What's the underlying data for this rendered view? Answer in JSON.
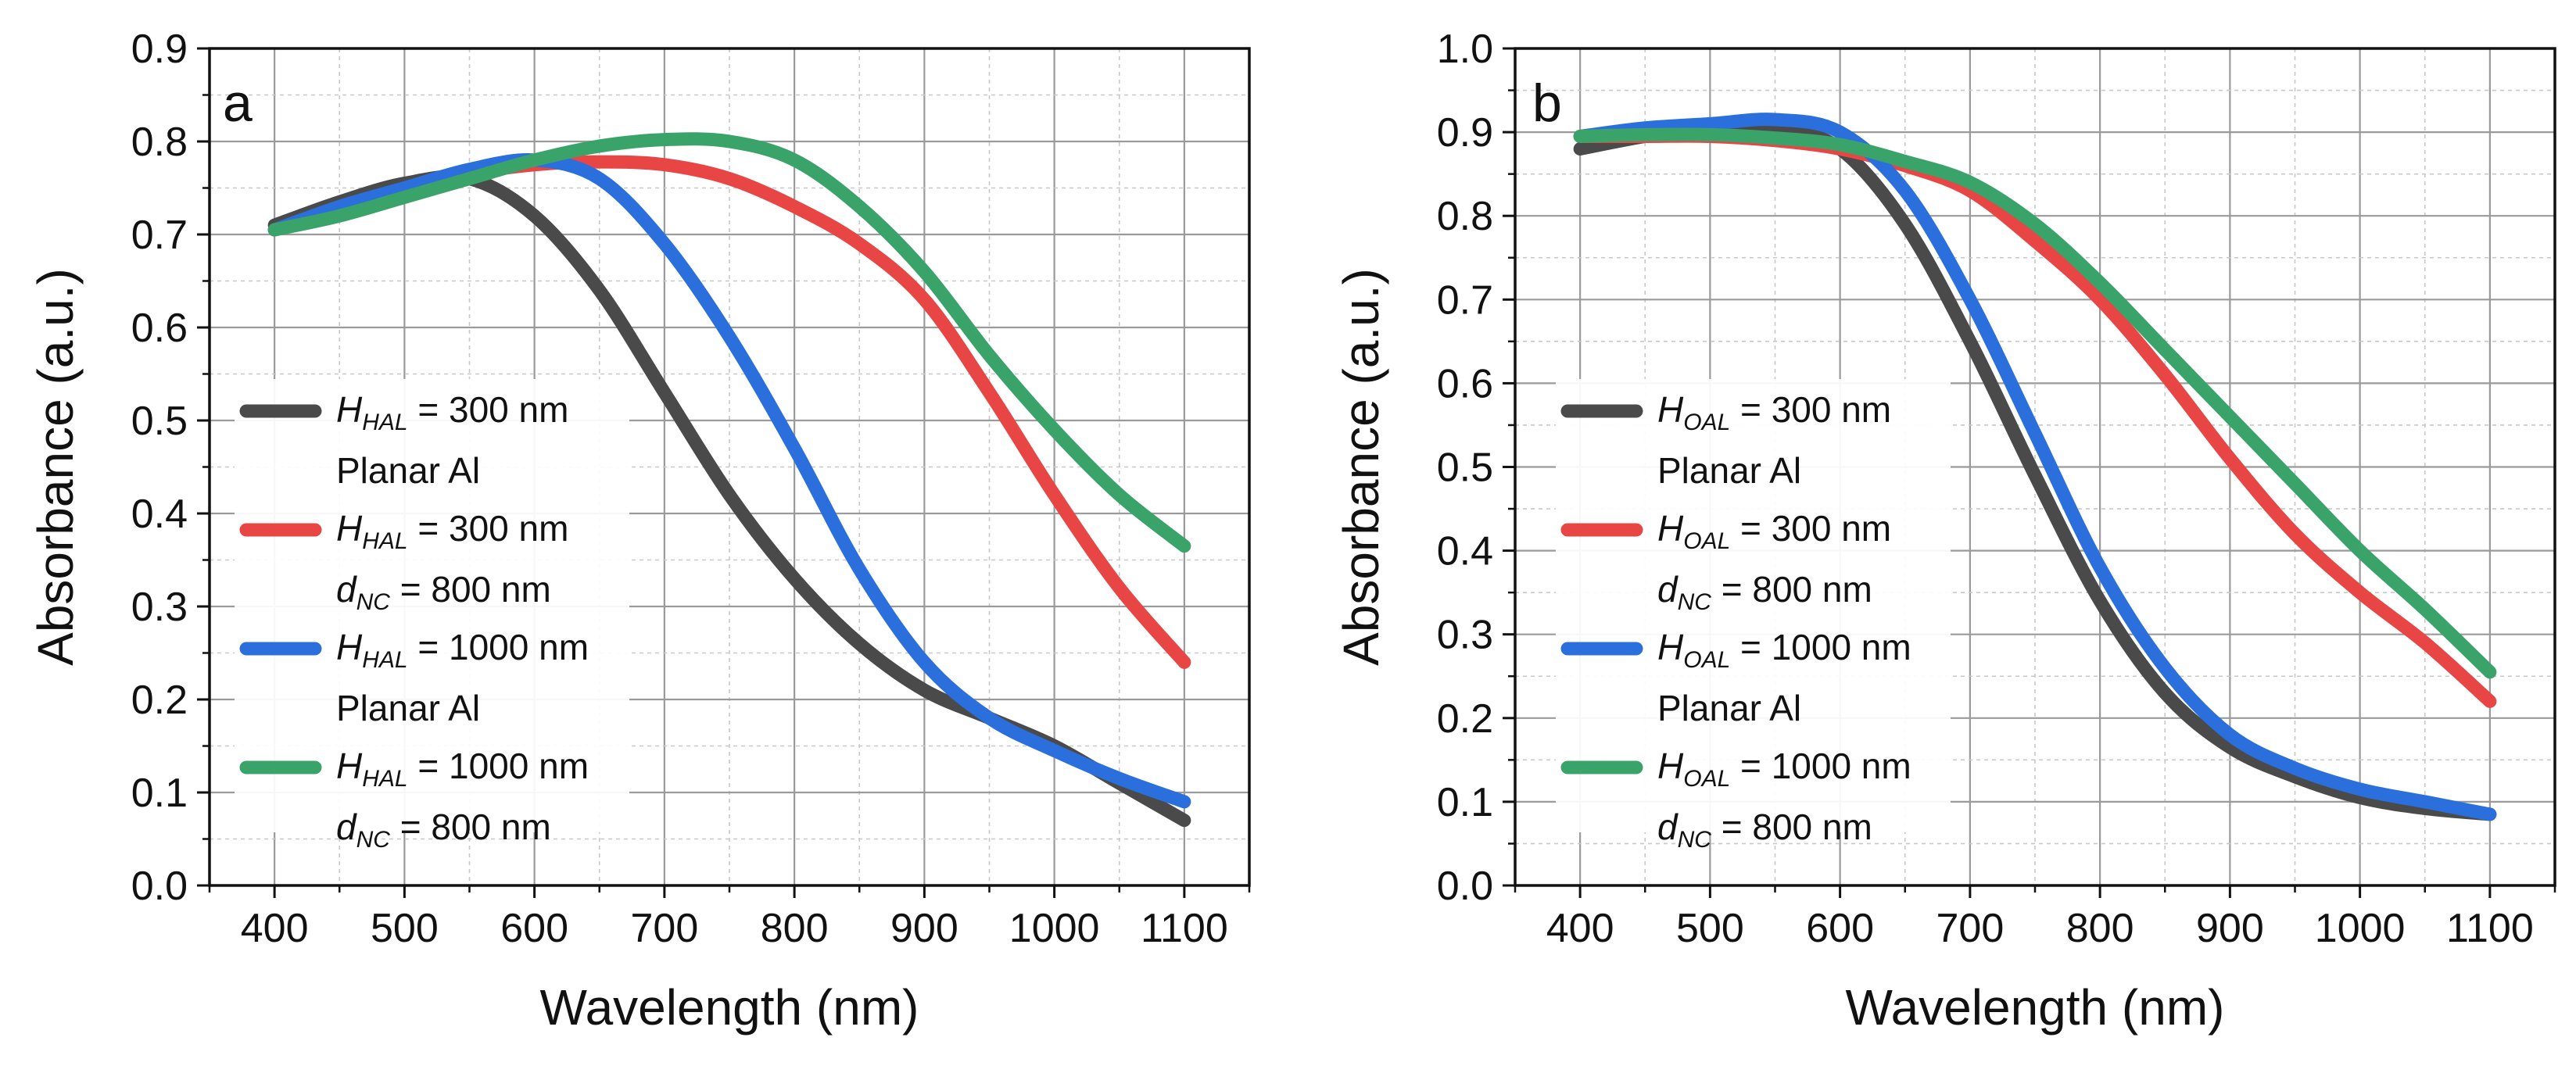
{
  "chart_data": [
    {
      "type": "line",
      "panel_label": "a",
      "xlabel": "Wavelength (nm)",
      "ylabel": "Absorbance (a.u.)",
      "xlim": [
        350,
        1150
      ],
      "ylim": [
        0.0,
        0.9
      ],
      "xticks": [
        400,
        500,
        600,
        700,
        800,
        900,
        1000,
        1100
      ],
      "xtick_labels": [
        "400",
        "500",
        "600",
        "700",
        "800",
        "900",
        "1000",
        "1100"
      ],
      "yticks": [
        0.0,
        0.1,
        0.2,
        0.3,
        0.4,
        0.5,
        0.6,
        0.7,
        0.8,
        0.9
      ],
      "ytick_labels": [
        "0.0",
        "0.1",
        "0.2",
        "0.3",
        "0.4",
        "0.5",
        "0.6",
        "0.7",
        "0.8",
        "0.9"
      ],
      "grid": true,
      "legend_position": "left",
      "x": [
        400,
        450,
        500,
        550,
        600,
        650,
        700,
        750,
        800,
        850,
        900,
        950,
        1000,
        1050,
        1100
      ],
      "series": [
        {
          "name": "H_HAL = 300 nm Planar Al",
          "symbol": "H",
          "subscript": "HAL",
          "value_text": " = 300 nm",
          "line2": "Planar Al",
          "line2_italic": "",
          "line2_sub": "",
          "line2_rest": "",
          "color": "#4a4a4a",
          "values": [
            0.71,
            0.735,
            0.755,
            0.76,
            0.72,
            0.64,
            0.53,
            0.42,
            0.33,
            0.26,
            0.21,
            0.18,
            0.15,
            0.11,
            0.07
          ]
        },
        {
          "name": "H_HAL = 300 nm d_NC = 800 nm",
          "symbol": "H",
          "subscript": "HAL",
          "value_text": " = 300 nm",
          "line2": "",
          "line2_italic": "d",
          "line2_sub": "NC",
          "line2_rest": " = 800 nm",
          "color": "#e84545",
          "values": [
            0.705,
            0.725,
            0.745,
            0.765,
            0.775,
            0.778,
            0.775,
            0.76,
            0.73,
            0.69,
            0.63,
            0.53,
            0.42,
            0.32,
            0.24
          ]
        },
        {
          "name": "H_HAL = 1000 nm Planar Al",
          "symbol": "H",
          "subscript": "HAL",
          "value_text": " = 1000 nm",
          "line2": "Planar Al",
          "line2_italic": "",
          "line2_sub": "",
          "line2_rest": "",
          "color": "#2b6fdc",
          "values": [
            0.705,
            0.73,
            0.75,
            0.77,
            0.78,
            0.76,
            0.69,
            0.59,
            0.47,
            0.34,
            0.24,
            0.18,
            0.145,
            0.115,
            0.09
          ]
        },
        {
          "name": "H_HAL = 1000 nm d_NC = 800 nm",
          "symbol": "H",
          "subscript": "HAL",
          "value_text": " = 1000 nm",
          "line2": "",
          "line2_italic": "d",
          "line2_sub": "NC",
          "line2_rest": " = 800 nm",
          "color": "#3aa36a",
          "values": [
            0.705,
            0.72,
            0.74,
            0.76,
            0.78,
            0.795,
            0.802,
            0.8,
            0.78,
            0.73,
            0.66,
            0.57,
            0.49,
            0.42,
            0.365
          ]
        }
      ]
    },
    {
      "type": "line",
      "panel_label": "b",
      "xlabel": "Wavelength (nm)",
      "ylabel": "Absorbance (a.u.)",
      "xlim": [
        350,
        1150
      ],
      "ylim": [
        0.0,
        1.0
      ],
      "xticks": [
        400,
        500,
        600,
        700,
        800,
        900,
        1000,
        1100
      ],
      "xtick_labels": [
        "400",
        "500",
        "600",
        "700",
        "800",
        "900",
        "1000",
        "1100"
      ],
      "yticks": [
        0.0,
        0.1,
        0.2,
        0.3,
        0.4,
        0.5,
        0.6,
        0.7,
        0.8,
        0.9,
        1.0
      ],
      "ytick_labels": [
        "0.0",
        "0.1",
        "0.2",
        "0.3",
        "0.4",
        "0.5",
        "0.6",
        "0.7",
        "0.8",
        "0.9",
        "1.0"
      ],
      "grid": true,
      "legend_position": "left",
      "x": [
        400,
        450,
        500,
        550,
        600,
        650,
        700,
        750,
        800,
        850,
        900,
        950,
        1000,
        1050,
        1100
      ],
      "series": [
        {
          "name": "H_OAL = 300 nm Planar Al",
          "symbol": "H",
          "subscript": "OAL",
          "value_text": " = 300 nm",
          "line2": "Planar Al",
          "line2_italic": "",
          "line2_sub": "",
          "line2_rest": "",
          "color": "#4a4a4a",
          "values": [
            0.88,
            0.895,
            0.905,
            0.905,
            0.88,
            0.79,
            0.65,
            0.49,
            0.34,
            0.23,
            0.165,
            0.13,
            0.105,
            0.092,
            0.085
          ]
        },
        {
          "name": "H_OAL = 300 nm d_NC = 800 nm",
          "symbol": "H",
          "subscript": "OAL",
          "value_text": " = 300 nm",
          "line2": "",
          "line2_italic": "d",
          "line2_sub": "NC",
          "line2_rest": " = 800 nm",
          "color": "#e84545",
          "values": [
            0.895,
            0.895,
            0.895,
            0.89,
            0.88,
            0.86,
            0.83,
            0.77,
            0.7,
            0.61,
            0.51,
            0.42,
            0.35,
            0.29,
            0.22
          ]
        },
        {
          "name": "H_OAL = 1000 nm Planar Al",
          "symbol": "H",
          "subscript": "OAL",
          "value_text": " = 1000 nm",
          "line2": "Planar Al",
          "line2_italic": "",
          "line2_sub": "",
          "line2_rest": "",
          "color": "#2b6fdc",
          "values": [
            0.895,
            0.905,
            0.91,
            0.915,
            0.9,
            0.83,
            0.7,
            0.54,
            0.38,
            0.26,
            0.18,
            0.14,
            0.115,
            0.1,
            0.085
          ]
        },
        {
          "name": "H_OAL = 1000 nm d_NC = 800 nm",
          "symbol": "H",
          "subscript": "OAL",
          "value_text": " = 1000 nm",
          "line2": "",
          "line2_italic": "d",
          "line2_sub": "NC",
          "line2_rest": " = 800 nm",
          "color": "#3aa36a",
          "values": [
            0.895,
            0.897,
            0.897,
            0.893,
            0.885,
            0.865,
            0.84,
            0.79,
            0.72,
            0.64,
            0.56,
            0.48,
            0.4,
            0.33,
            0.255
          ]
        }
      ]
    }
  ]
}
